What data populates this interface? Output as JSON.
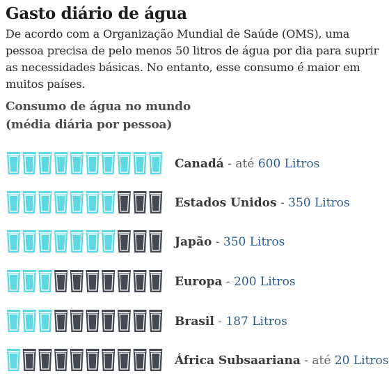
{
  "title": "Gasto diário de água",
  "intro": "De acordo com a Organização Mundial de Saúde (OMS), uma pessoa precisa de pelo menos 50 litros de água por dia para suprir as necessidades básicas. No entanto, esse consumo é maior em muitos países.",
  "subtitle_line1": "Consumo de água no mundo",
  "subtitle_line2": "(média diária por pessoa)",
  "colors": {
    "filled": "#5ed9e2",
    "empty": "#454a52"
  },
  "chart_data": {
    "type": "pictogram",
    "glasses_per_row": 10,
    "rows": [
      {
        "country": "Canadá",
        "separator": " - até ",
        "value_label": "600 Litros",
        "filled_glasses": 10,
        "value": 600
      },
      {
        "country": "Estados Unidos",
        "separator": " - ",
        "value_label": "350 Litros",
        "filled_glasses": 7,
        "value": 350
      },
      {
        "country": "Japão",
        "separator": " - ",
        "value_label": "350 Litros",
        "filled_glasses": 7,
        "value": 350
      },
      {
        "country": "Europa",
        "separator": " - ",
        "value_label": "200 Litros",
        "filled_glasses": 3,
        "value": 200
      },
      {
        "country": "Brasil",
        "separator": " - ",
        "value_label": "187 Litros",
        "filled_glasses": 3,
        "value": 187
      },
      {
        "country": "África Subsaariana",
        "separator": " - até ",
        "value_label": "20 Litros",
        "filled_glasses": 1,
        "value": 20
      }
    ]
  }
}
